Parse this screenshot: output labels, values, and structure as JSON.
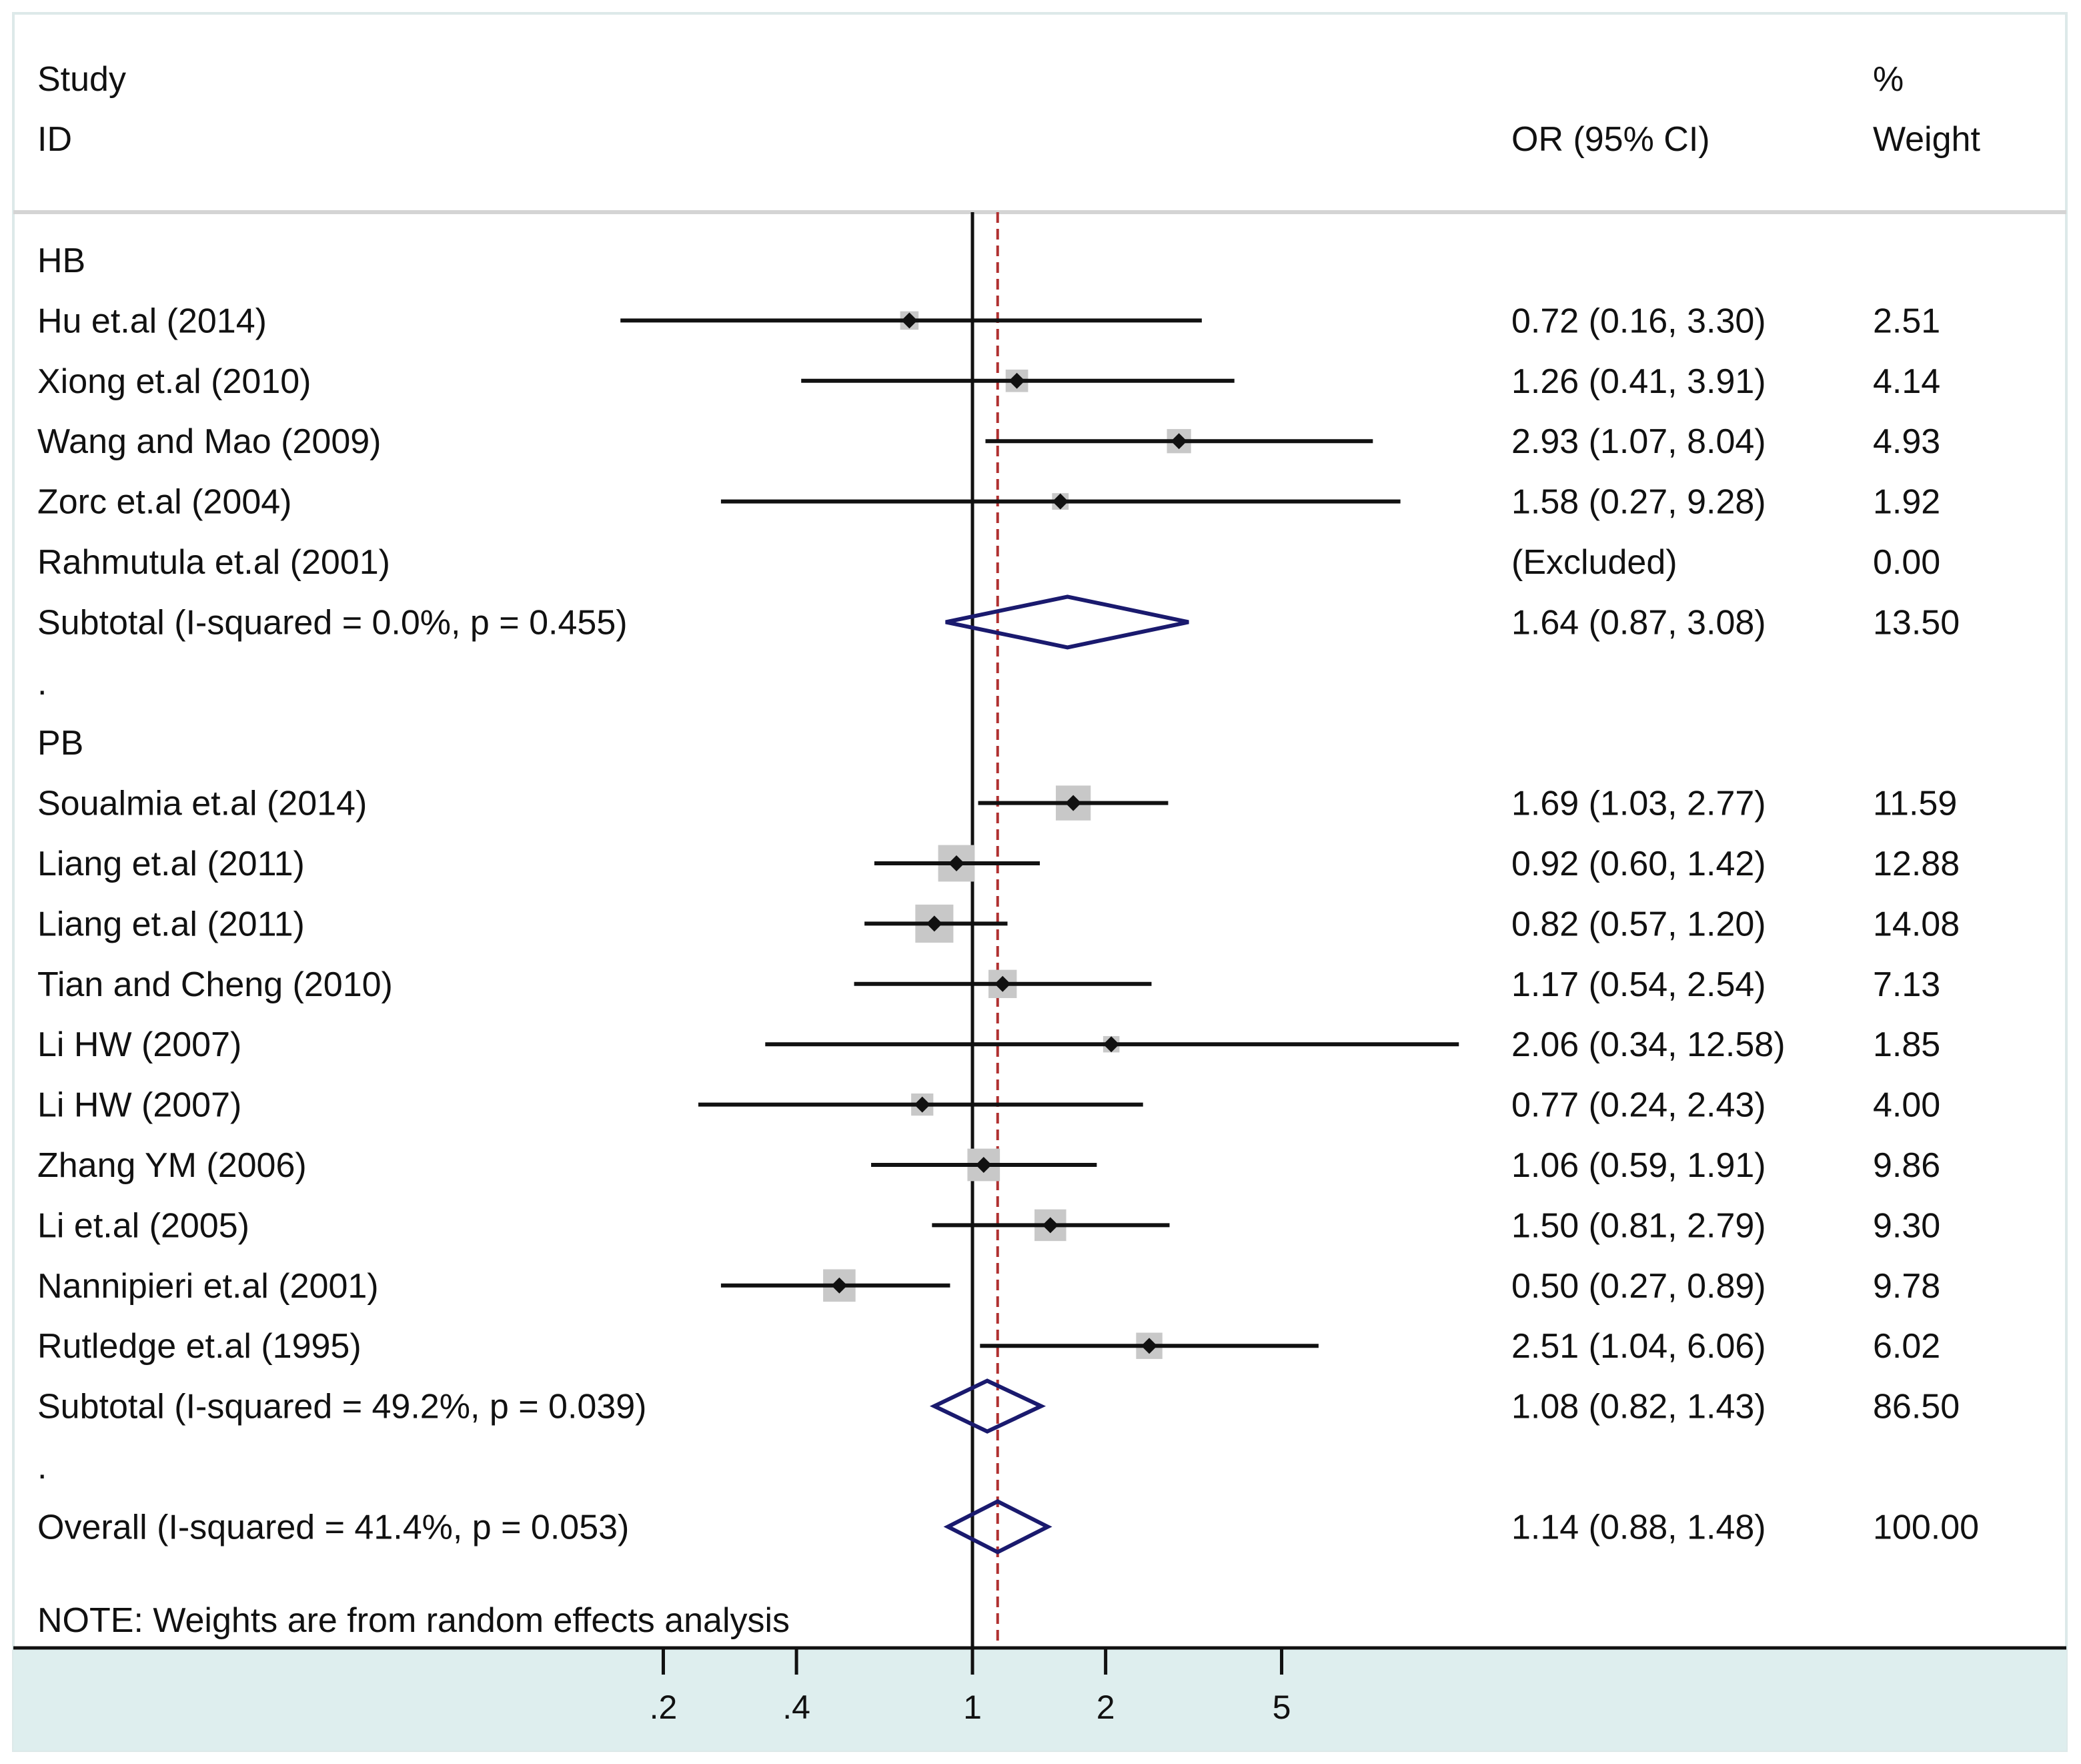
{
  "header": {
    "study_label": "Study",
    "id_label": "ID",
    "effect_label": "OR (95% CI)",
    "pct_label": "%",
    "weight_label": "Weight"
  },
  "note": "NOTE: Weights are from random effects analysis",
  "colors": {
    "background": "#ffffff",
    "axis_band": "#deeeee",
    "box": "#c8c8c8",
    "diamond": "#1a1a6e",
    "overall_line": "#b03030",
    "text": "#111111"
  },
  "chart_data": {
    "type": "forest",
    "scale": "log",
    "null_value": 1,
    "overall_effect_line": 1.14,
    "x_ticks": [
      {
        "value": 0.2,
        "label": ".2"
      },
      {
        "value": 0.4,
        "label": ".4"
      },
      {
        "value": 1,
        "label": "1"
      },
      {
        "value": 2,
        "label": "2"
      },
      {
        "value": 5,
        "label": "5"
      }
    ],
    "rows": [
      {
        "kind": "group",
        "label": "HB"
      },
      {
        "kind": "study",
        "label": "Hu et.al (2014)",
        "or": 0.72,
        "lo": 0.16,
        "hi": 3.3,
        "text": "0.72 (0.16, 3.30)",
        "weight": "2.51",
        "w": 2.51
      },
      {
        "kind": "study",
        "label": "Xiong et.al (2010)",
        "or": 1.26,
        "lo": 0.41,
        "hi": 3.91,
        "text": "1.26 (0.41, 3.91)",
        "weight": "4.14",
        "w": 4.14
      },
      {
        "kind": "study",
        "label": "Wang and Mao (2009)",
        "or": 2.93,
        "lo": 1.07,
        "hi": 8.04,
        "text": "2.93 (1.07, 8.04)",
        "weight": "4.93",
        "w": 4.93
      },
      {
        "kind": "study",
        "label": "Zorc et.al (2004)",
        "or": 1.58,
        "lo": 0.27,
        "hi": 9.28,
        "text": "1.58 (0.27, 9.28)",
        "weight": "1.92",
        "w": 1.92
      },
      {
        "kind": "excluded",
        "label": "Rahmutula et.al (2001)",
        "text": "(Excluded)",
        "weight": "0.00"
      },
      {
        "kind": "subtotal",
        "label": "Subtotal  (I-squared = 0.0%, p = 0.455)",
        "or": 1.64,
        "lo": 0.87,
        "hi": 3.08,
        "text": "1.64 (0.87, 3.08)",
        "weight": "13.50"
      },
      {
        "kind": "spacer",
        "label": "."
      },
      {
        "kind": "group",
        "label": "PB"
      },
      {
        "kind": "study",
        "label": "Soualmia et.al (2014)",
        "or": 1.69,
        "lo": 1.03,
        "hi": 2.77,
        "text": "1.69 (1.03, 2.77)",
        "weight": "11.59",
        "w": 11.59
      },
      {
        "kind": "study",
        "label": "Liang et.al (2011)",
        "or": 0.92,
        "lo": 0.6,
        "hi": 1.42,
        "text": "0.92 (0.60, 1.42)",
        "weight": "12.88",
        "w": 12.88
      },
      {
        "kind": "study",
        "label": "Liang et.al (2011)",
        "or": 0.82,
        "lo": 0.57,
        "hi": 1.2,
        "text": "0.82 (0.57, 1.20)",
        "weight": "14.08",
        "w": 14.08
      },
      {
        "kind": "study",
        "label": "Tian and Cheng (2010)",
        "or": 1.17,
        "lo": 0.54,
        "hi": 2.54,
        "text": "1.17 (0.54, 2.54)",
        "weight": "7.13",
        "w": 7.13
      },
      {
        "kind": "study",
        "label": "Li HW  (2007)",
        "or": 2.06,
        "lo": 0.34,
        "hi": 12.58,
        "text": "2.06 (0.34, 12.58)",
        "weight": "1.85",
        "w": 1.85
      },
      {
        "kind": "study",
        "label": "Li HW  (2007)",
        "or": 0.77,
        "lo": 0.24,
        "hi": 2.43,
        "text": "0.77 (0.24, 2.43)",
        "weight": "4.00",
        "w": 4.0
      },
      {
        "kind": "study",
        "label": "Zhang YM  (2006)",
        "or": 1.06,
        "lo": 0.59,
        "hi": 1.91,
        "text": "1.06 (0.59, 1.91)",
        "weight": "9.86",
        "w": 9.86
      },
      {
        "kind": "study",
        "label": "Li et.al (2005)",
        "or": 1.5,
        "lo": 0.81,
        "hi": 2.79,
        "text": "1.50 (0.81, 2.79)",
        "weight": "9.30",
        "w": 9.3
      },
      {
        "kind": "study",
        "label": "Nannipieri et.al (2001)",
        "or": 0.5,
        "lo": 0.27,
        "hi": 0.89,
        "text": "0.50 (0.27, 0.89)",
        "weight": "9.78",
        "w": 9.78
      },
      {
        "kind": "study",
        "label": "Rutledge et.al (1995)",
        "or": 2.51,
        "lo": 1.04,
        "hi": 6.06,
        "text": "2.51 (1.04, 6.06)",
        "weight": "6.02",
        "w": 6.02
      },
      {
        "kind": "subtotal",
        "label": "Subtotal  (I-squared = 49.2%, p = 0.039)",
        "or": 1.08,
        "lo": 0.82,
        "hi": 1.43,
        "text": "1.08 (0.82, 1.43)",
        "weight": "86.50"
      },
      {
        "kind": "spacer",
        "label": "."
      },
      {
        "kind": "overall",
        "label": "Overall  (I-squared = 41.4%, p = 0.053)",
        "or": 1.14,
        "lo": 0.88,
        "hi": 1.48,
        "text": "1.14 (0.88, 1.48)",
        "weight": "100.00"
      }
    ]
  }
}
